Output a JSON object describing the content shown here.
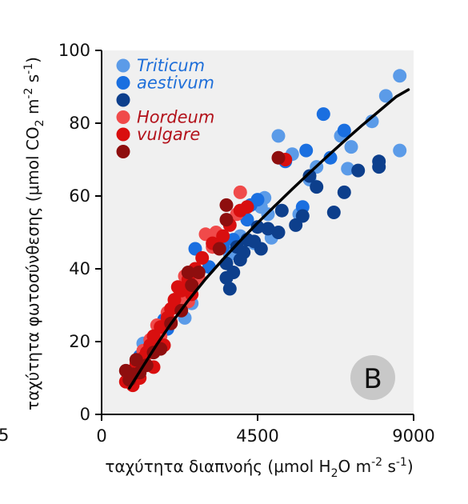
{
  "chart_data": {
    "type": "scatter",
    "panel_label": "B",
    "edge_fragment": "5",
    "xlabel": {
      "pre": "ταχύτητα διαπνοής (μmol H",
      "sub": "2",
      "mid": "O m",
      "sup1": "-2",
      "mid2": " s",
      "sup2": "-1",
      "post": ")"
    },
    "ylabel": {
      "pre": "ταχύτητα φωτοσύνθεσης (μmol CO",
      "sub": "2",
      "mid": " m",
      "sup1": "-2",
      "mid2": " s",
      "sup2": "-1",
      "post": ")"
    },
    "xlim": [
      0,
      9000
    ],
    "ylim": [
      0,
      100
    ],
    "xticks": [
      0,
      4500,
      9000
    ],
    "yticks": [
      0,
      20,
      40,
      60,
      80,
      100
    ],
    "xtick_labels": [
      "0",
      "4500",
      "9000"
    ],
    "ytick_labels": [
      "0",
      "20",
      "40",
      "60",
      "80",
      "100"
    ],
    "grid": false,
    "background": "#f0f0f0",
    "legend": {
      "position": "top-left",
      "entries": [
        {
          "label": "Triticum",
          "color": "#5b9be8",
          "text_color": "#1f6fd9"
        },
        {
          "label": "aestivum",
          "color": "#1a6fe0",
          "text_color": "#1f6fd9"
        },
        {
          "label": "",
          "color": "#0d3f8c",
          "text_color": "#1f6fd9"
        },
        {
          "label": "Hordeum",
          "color": "#f04a4a",
          "text_color": "#b3121b"
        },
        {
          "label": "vulgare",
          "color": "#d90f0f",
          "text_color": "#b3121b"
        },
        {
          "label": "",
          "color": "#8e0e0e",
          "text_color": "#b3121b"
        }
      ]
    },
    "series": [
      {
        "color": "#5b9be8",
        "points": [
          [
            8600,
            93
          ],
          [
            8200,
            87.5
          ],
          [
            8600,
            72.5
          ],
          [
            7800,
            80.5
          ],
          [
            7200,
            73.5
          ],
          [
            7100,
            67.5
          ],
          [
            6900,
            76.5
          ],
          [
            6200,
            68
          ],
          [
            5500,
            71.5
          ],
          [
            5100,
            76.5
          ],
          [
            4600,
            57
          ],
          [
            4800,
            55
          ],
          [
            4900,
            48.5
          ],
          [
            4400,
            47
          ],
          [
            4000,
            49
          ],
          [
            1500,
            21
          ],
          [
            1200,
            19.5
          ],
          [
            2600,
            30.5
          ],
          [
            2400,
            26.5
          ],
          [
            5700,
            55
          ],
          [
            6000,
            64.5
          ],
          [
            4700,
            59.5
          ],
          [
            3700,
            44
          ]
        ]
      },
      {
        "color": "#1a6fe0",
        "points": [
          [
            6400,
            82.5
          ],
          [
            7000,
            78
          ],
          [
            6600,
            70.5
          ],
          [
            5900,
            72.5
          ],
          [
            5300,
            69.5
          ],
          [
            5800,
            57
          ],
          [
            4500,
            59
          ],
          [
            4300,
            57.5
          ],
          [
            4200,
            53.5
          ],
          [
            3800,
            48
          ],
          [
            3500,
            46
          ],
          [
            3100,
            40.5
          ],
          [
            2700,
            45.5
          ],
          [
            3300,
            47.5
          ],
          [
            1900,
            23.5
          ],
          [
            1800,
            26
          ],
          [
            1100,
            16
          ]
        ]
      },
      {
        "color": "#0d3f8c",
        "points": [
          [
            8000,
            69.5
          ],
          [
            8000,
            68
          ],
          [
            7400,
            67
          ],
          [
            7000,
            61
          ],
          [
            6700,
            55.5
          ],
          [
            6200,
            62.5
          ],
          [
            6000,
            65.5
          ],
          [
            5800,
            54.5
          ],
          [
            5600,
            52
          ],
          [
            5200,
            56
          ],
          [
            5100,
            50
          ],
          [
            4800,
            51
          ],
          [
            4500,
            51.5
          ],
          [
            4600,
            45.5
          ],
          [
            4400,
            47.5
          ],
          [
            4200,
            48
          ],
          [
            4000,
            42.5
          ],
          [
            3900,
            46
          ],
          [
            4100,
            44.5
          ],
          [
            3800,
            39
          ],
          [
            3600,
            37.5
          ],
          [
            3700,
            34.5
          ],
          [
            3600,
            41.5
          ]
        ]
      },
      {
        "color": "#f04a4a",
        "points": [
          [
            4000,
            61
          ],
          [
            3900,
            55
          ],
          [
            3300,
            50
          ],
          [
            3000,
            49.5
          ],
          [
            2400,
            38
          ],
          [
            2200,
            32
          ],
          [
            2100,
            30
          ],
          [
            1900,
            28
          ],
          [
            1600,
            24.5
          ],
          [
            1400,
            20.5
          ],
          [
            1200,
            17.5
          ],
          [
            1000,
            14
          ],
          [
            1300,
            16.5
          ],
          [
            1700,
            21.5
          ],
          [
            2000,
            25.5
          ],
          [
            2500,
            31
          ],
          [
            2800,
            37.5
          ],
          [
            3200,
            46
          ]
        ]
      },
      {
        "color": "#d90f0f",
        "points": [
          [
            5300,
            70
          ],
          [
            4200,
            57
          ],
          [
            4000,
            56
          ],
          [
            3700,
            52
          ],
          [
            3500,
            49
          ],
          [
            3200,
            47
          ],
          [
            2900,
            43
          ],
          [
            2700,
            40
          ],
          [
            2500,
            37
          ],
          [
            2300,
            34
          ],
          [
            2100,
            31.5
          ],
          [
            1900,
            26.5
          ],
          [
            1700,
            24
          ],
          [
            1500,
            21.5
          ],
          [
            1400,
            19
          ],
          [
            1300,
            17
          ],
          [
            1200,
            15.5
          ],
          [
            1100,
            14.5
          ],
          [
            1000,
            13.5
          ],
          [
            900,
            12
          ],
          [
            800,
            10.5
          ],
          [
            700,
            9
          ],
          [
            900,
            8
          ],
          [
            1100,
            10
          ],
          [
            1500,
            13
          ],
          [
            1800,
            19
          ],
          [
            2000,
            29
          ],
          [
            2200,
            35
          ],
          [
            2600,
            33
          ]
        ]
      },
      {
        "color": "#8e0e0e",
        "points": [
          [
            5100,
            70.5
          ],
          [
            3600,
            57.5
          ],
          [
            3600,
            53.5
          ],
          [
            3400,
            45.5
          ],
          [
            2500,
            39
          ],
          [
            2800,
            39
          ],
          [
            2600,
            35.5
          ],
          [
            2300,
            28.5
          ],
          [
            2000,
            25
          ],
          [
            1700,
            18
          ],
          [
            1500,
            17
          ],
          [
            1300,
            13.5
          ],
          [
            1100,
            11.5
          ],
          [
            900,
            11
          ],
          [
            800,
            9.5
          ],
          [
            700,
            12
          ],
          [
            1000,
            15
          ]
        ]
      }
    ],
    "fit_curve": {
      "color": "#000000",
      "points": [
        [
          800,
          7.2
        ],
        [
          1200,
          13.3
        ],
        [
          1600,
          19.3
        ],
        [
          2000,
          24.9
        ],
        [
          2500,
          31.3
        ],
        [
          3000,
          37.2
        ],
        [
          3500,
          42.6
        ],
        [
          4000,
          47.7
        ],
        [
          4500,
          52.6
        ],
        [
          5000,
          57.3
        ],
        [
          5500,
          61.9
        ],
        [
          6000,
          66.4
        ],
        [
          6500,
          70.8
        ],
        [
          7000,
          75.1
        ],
        [
          7500,
          79.3
        ],
        [
          8000,
          83.3
        ],
        [
          8500,
          87.3
        ],
        [
          8850,
          89.2
        ]
      ]
    }
  }
}
